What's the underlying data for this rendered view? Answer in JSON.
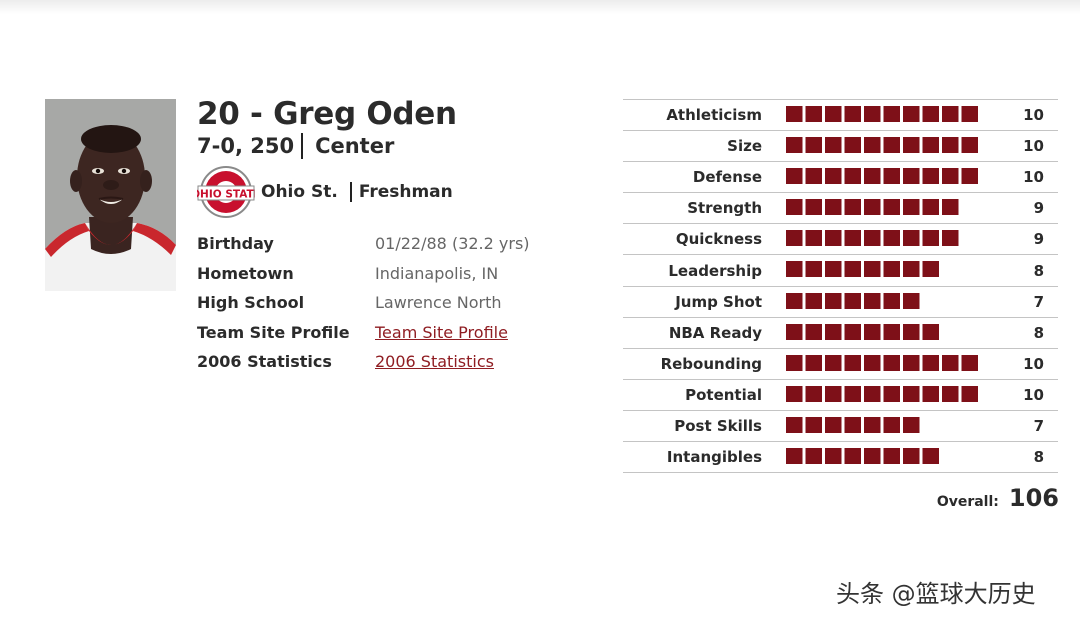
{
  "player": {
    "name": "20 - Greg Oden",
    "size": "7-0, 250",
    "position": "Center",
    "school": "Ohio St.",
    "year": "Freshman",
    "logo_text": "OHIO STATE"
  },
  "info": [
    {
      "label": "Birthday",
      "value": "01/22/88 (32.2 yrs)",
      "link": false
    },
    {
      "label": "Hometown",
      "value": "Indianapolis, IN",
      "link": false
    },
    {
      "label": "High School",
      "value": "Lawrence North",
      "link": false
    },
    {
      "label": "Team Site Profile",
      "value": "Team Site Profile",
      "link": true
    },
    {
      "label": "2006 Statistics",
      "value": "2006 Statistics",
      "link": true
    }
  ],
  "ratings": [
    {
      "label": "Athleticism",
      "value": 10
    },
    {
      "label": "Size",
      "value": 10
    },
    {
      "label": "Defense",
      "value": 10
    },
    {
      "label": "Strength",
      "value": 9
    },
    {
      "label": "Quickness",
      "value": 9
    },
    {
      "label": "Leadership",
      "value": 8
    },
    {
      "label": "Jump Shot",
      "value": 7
    },
    {
      "label": "NBA Ready",
      "value": 8
    },
    {
      "label": "Rebounding",
      "value": 10
    },
    {
      "label": "Potential",
      "value": 10
    },
    {
      "label": "Post Skills",
      "value": 7
    },
    {
      "label": "Intangibles",
      "value": 8
    }
  ],
  "overall": {
    "label": "Overall:",
    "value": "106"
  },
  "watermark": "头条 @篮球大历史",
  "colors": {
    "bar": "#7e1018",
    "link": "#8f1d22",
    "logo_red": "#c8102e"
  },
  "icons": {
    "logo": "ohio-state-logo",
    "photo": "player-photo"
  }
}
